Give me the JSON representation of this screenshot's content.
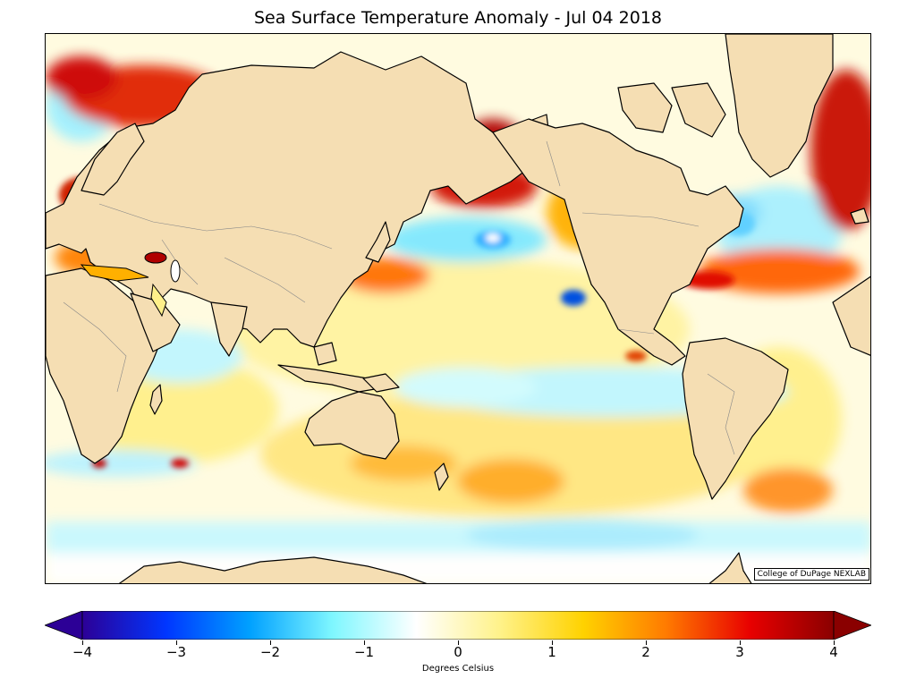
{
  "title": "Sea Surface Temperature Anomaly - Jul 04 2018",
  "credit": "College of DuPage NEXLAB",
  "colorbar": {
    "label": "Degrees Celsius",
    "ticks": [
      "−4",
      "−3",
      "−2",
      "−1",
      "0",
      "1",
      "2",
      "3",
      "4"
    ],
    "range": [
      -4,
      4
    ],
    "extend": "both",
    "stops": [
      "#2c0096",
      "#0036ff",
      "#00a0ff",
      "#7ff7ff",
      "#ffffff",
      "#fff28a",
      "#ffd200",
      "#ff7a00",
      "#e80000",
      "#8a0000"
    ]
  },
  "colors": {
    "land": "#f5deb3",
    "coast": "#000000",
    "border": "#888888",
    "ocean_neutral": "#ffffff"
  }
}
